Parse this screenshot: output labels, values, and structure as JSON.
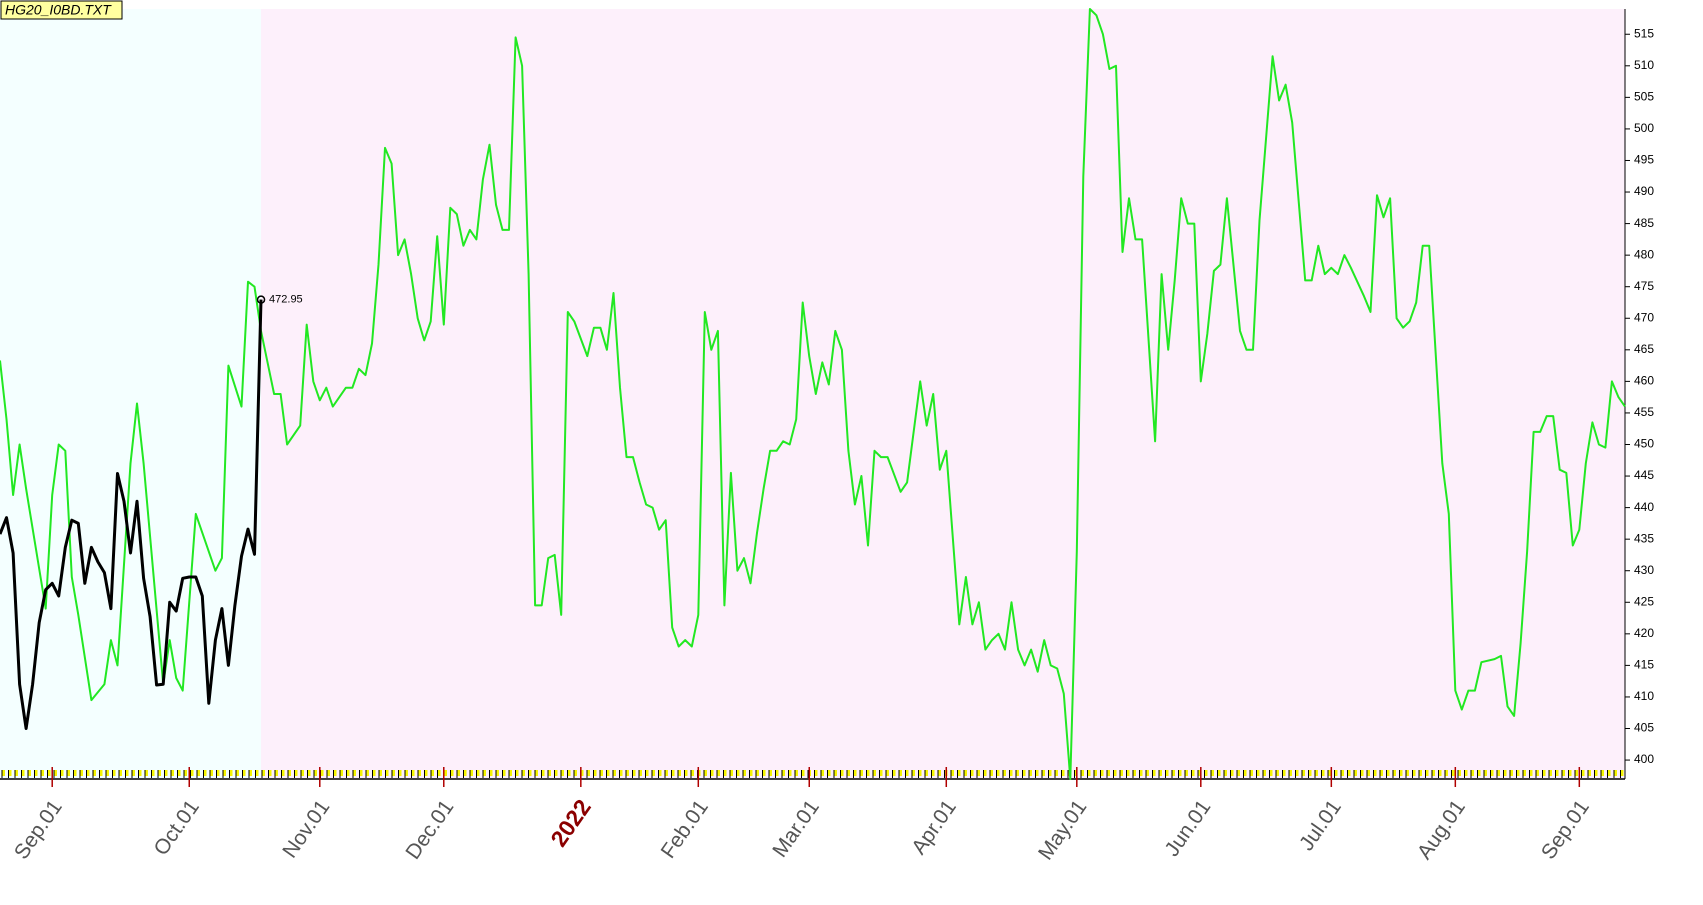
{
  "chart_data": {
    "type": "line",
    "title": "HG20_I0BD.TXT",
    "xlim": [
      0,
      249
    ],
    "ylim": [
      397,
      519
    ],
    "yticks": [
      400,
      405,
      410,
      415,
      420,
      425,
      430,
      435,
      440,
      445,
      450,
      455,
      460,
      465,
      470,
      475,
      480,
      485,
      490,
      495,
      500,
      505,
      510,
      515
    ],
    "xticks": [
      {
        "value": 8,
        "label": "Sep.01"
      },
      {
        "value": 29,
        "label": "Oct.01"
      },
      {
        "value": 49,
        "label": "Nov.01"
      },
      {
        "value": 68,
        "label": "Dec.01"
      },
      {
        "value": 89,
        "label": "2022"
      },
      {
        "value": 107,
        "label": "Feb.01"
      },
      {
        "value": 124,
        "label": "Mar.01"
      },
      {
        "value": 145,
        "label": "Apr.01"
      },
      {
        "value": 165,
        "label": "May.01"
      },
      {
        "value": 184,
        "label": "Jun.01"
      },
      {
        "value": 204,
        "label": "Jul.01"
      },
      {
        "value": 223,
        "label": "Aug.01"
      },
      {
        "value": 242,
        "label": "Sep.01"
      }
    ],
    "series": [
      {
        "color": "#22e822",
        "x": [
          0,
          1,
          2,
          3,
          4,
          7,
          8,
          9,
          10,
          11,
          12,
          14,
          16,
          17,
          18,
          20,
          21,
          22,
          25,
          26,
          27,
          28,
          30,
          33,
          34,
          35,
          37,
          38,
          39,
          40,
          42,
          43,
          44,
          46,
          47,
          48,
          49,
          50,
          51,
          53,
          54,
          55,
          56,
          57,
          58,
          59,
          60,
          61,
          62,
          63,
          64,
          65,
          66,
          67,
          68,
          69,
          70,
          71,
          72,
          73,
          74,
          75,
          76,
          77,
          78,
          79,
          80,
          81,
          82,
          83,
          84,
          85,
          86,
          87,
          88,
          90,
          91,
          92,
          93,
          94,
          95,
          96,
          97,
          98,
          99,
          100,
          101,
          102,
          103,
          104,
          105,
          106,
          107,
          108,
          109,
          110,
          111,
          112,
          113,
          114,
          115,
          116,
          117,
          118,
          119,
          120,
          121,
          122,
          123,
          124,
          125,
          126,
          127,
          128,
          129,
          130,
          131,
          132,
          133,
          134,
          135,
          136,
          138,
          139,
          141,
          142,
          143,
          144,
          145,
          147,
          148,
          149,
          150,
          151,
          152,
          153,
          154,
          155,
          156,
          157,
          158,
          159,
          160,
          161,
          162,
          163,
          164,
          165,
          166,
          167,
          168,
          169,
          170,
          171,
          172,
          173,
          174,
          175,
          177,
          178,
          179,
          180,
          181,
          182,
          183,
          184,
          185,
          186,
          187,
          188,
          190,
          191,
          192,
          193,
          195,
          196,
          197,
          198,
          199,
          200,
          201,
          202,
          203,
          204,
          205,
          206,
          207,
          209,
          210,
          211,
          212,
          213,
          214,
          215,
          216,
          217,
          218,
          219,
          221,
          222,
          223,
          224,
          225,
          226,
          227,
          229,
          230,
          231,
          232,
          233,
          234,
          235,
          236,
          237,
          238,
          239,
          240,
          241,
          242,
          243,
          244,
          245,
          246,
          247,
          248,
          249
        ],
        "values": [
          463.3,
          454,
          442,
          450,
          443,
          424,
          442,
          450,
          449,
          429,
          423,
          409.5,
          412,
          419,
          415,
          447,
          456.5,
          447,
          412,
          419,
          413,
          411,
          439,
          430,
          432,
          462.5,
          456,
          475.8,
          475,
          468,
          458,
          458,
          450,
          453,
          469,
          460,
          457,
          459,
          456,
          459,
          459,
          462,
          461,
          466,
          478.5,
          497,
          494.5,
          480,
          482.5,
          477,
          470,
          466.5,
          469.5,
          483,
          469,
          487.5,
          486.5,
          481.5,
          484,
          482.5,
          492,
          497.5,
          488,
          484,
          484,
          514.5,
          510,
          477,
          424.5,
          424.5,
          432,
          432.5,
          423,
          471,
          469.5,
          464,
          468.5,
          468.5,
          465,
          474,
          459,
          448,
          448,
          444,
          440.5,
          440,
          436.5,
          438,
          421,
          418,
          419,
          418,
          423,
          471,
          465,
          468,
          424.5,
          445.5,
          430,
          432,
          428,
          436,
          443,
          449,
          449,
          450.5,
          450,
          454,
          472.5,
          464,
          458,
          463,
          459.5,
          468,
          465,
          449,
          440.5,
          445,
          434,
          449,
          448,
          448,
          442.5,
          444,
          460,
          453,
          458,
          446,
          449,
          421.5,
          429,
          421.5,
          425,
          417.5,
          419,
          420,
          417.5,
          425,
          417.5,
          415,
          417.5,
          414,
          419,
          415,
          414.5,
          410.5,
          397,
          433,
          492.5,
          519,
          518,
          515,
          509.5,
          510,
          480.5,
          489,
          482.5,
          482.5,
          450.5,
          477,
          465,
          476,
          489,
          485,
          485,
          460,
          467.5,
          477.5,
          478.5,
          489,
          468,
          465,
          465,
          485.5,
          511.5,
          504.5,
          507,
          501,
          488.5,
          476,
          476,
          481.5,
          477,
          478,
          477,
          480,
          478,
          473.5,
          471,
          489.5,
          486,
          489,
          470,
          468.5,
          469.5,
          472.5,
          481.5,
          481.5,
          447,
          439,
          411,
          408,
          411,
          411,
          415.5,
          416,
          416.5,
          408.5,
          407,
          418.5,
          433,
          452,
          452,
          454.5,
          454.5,
          446,
          445.5,
          434,
          436.5,
          447,
          453.5,
          450,
          449.5,
          460,
          457.5,
          456
        ]
      },
      {
        "color": "#000000",
        "x": [
          0,
          1,
          2,
          3,
          4,
          5,
          6,
          7,
          8,
          9,
          10,
          11,
          12,
          13,
          14,
          15,
          16,
          17,
          18,
          19,
          20,
          21,
          22,
          23,
          24,
          25,
          26,
          27,
          28,
          29,
          30,
          31,
          32,
          33,
          34,
          35,
          36,
          37,
          38,
          39,
          40
        ],
        "values": [
          435.8,
          438.4,
          432.8,
          412,
          405,
          412,
          421.8,
          427,
          428,
          426,
          433.7,
          438,
          437.5,
          428,
          433.7,
          431.4,
          429.7,
          424,
          445.4,
          441,
          432.8,
          441,
          428.8,
          422.7,
          411.9,
          412,
          425,
          423.6,
          428.8,
          429,
          429,
          426,
          409,
          419,
          424,
          415,
          424.5,
          432.3,
          436.6,
          432.6,
          472.95
        ],
        "annotation": "472.95"
      }
    ]
  }
}
